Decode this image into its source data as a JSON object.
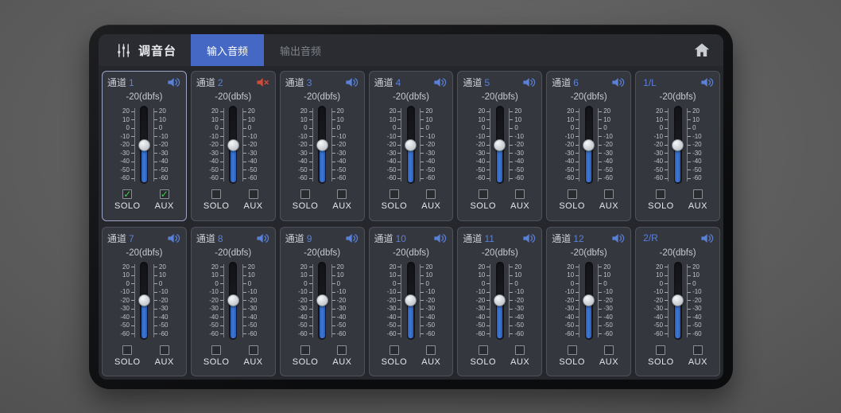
{
  "app": {
    "title": "调音台",
    "title_icon": "mixer-sliders-icon",
    "home_icon": "home-icon",
    "tabs": [
      {
        "label": "输入音频",
        "active": true
      },
      {
        "label": "输出音频",
        "active": false
      }
    ]
  },
  "colors": {
    "tab_active_blue": "#4468c4",
    "channel_accent_blue": "#5a80d8",
    "mute_red": "#d14b38",
    "check_green": "#3ecf52",
    "fader_blue": "#3471d0"
  },
  "fader_scale_labels": [
    "20",
    "10",
    "0",
    "-10",
    "-20",
    "-30",
    "-40",
    "-50",
    "-60"
  ],
  "checkbox_labels": {
    "solo": "SOLO",
    "aux": "AUX"
  },
  "channels": [
    {
      "prefix": "通道",
      "id": "1",
      "level": "-20(dbfs)",
      "fader_percent": 50,
      "muted": false,
      "selected": true,
      "solo": true,
      "aux": true
    },
    {
      "prefix": "通道",
      "id": "2",
      "level": "-20(dbfs)",
      "fader_percent": 50,
      "muted": true,
      "selected": false,
      "solo": false,
      "aux": false
    },
    {
      "prefix": "通道",
      "id": "3",
      "level": "-20(dbfs)",
      "fader_percent": 50,
      "muted": false,
      "selected": false,
      "solo": false,
      "aux": false
    },
    {
      "prefix": "通道",
      "id": "4",
      "level": "-20(dbfs)",
      "fader_percent": 50,
      "muted": false,
      "selected": false,
      "solo": false,
      "aux": false
    },
    {
      "prefix": "通道",
      "id": "5",
      "level": "-20(dbfs)",
      "fader_percent": 50,
      "muted": false,
      "selected": false,
      "solo": false,
      "aux": false
    },
    {
      "prefix": "通道",
      "id": "6",
      "level": "-20(dbfs)",
      "fader_percent": 50,
      "muted": false,
      "selected": false,
      "solo": false,
      "aux": false
    },
    {
      "prefix": "",
      "id": "1/L",
      "level": "-20(dbfs)",
      "fader_percent": 50,
      "muted": false,
      "selected": false,
      "solo": false,
      "aux": false
    },
    {
      "prefix": "通道",
      "id": "7",
      "level": "-20(dbfs)",
      "fader_percent": 50,
      "muted": false,
      "selected": false,
      "solo": false,
      "aux": false
    },
    {
      "prefix": "通道",
      "id": "8",
      "level": "-20(dbfs)",
      "fader_percent": 50,
      "muted": false,
      "selected": false,
      "solo": false,
      "aux": false
    },
    {
      "prefix": "通道",
      "id": "9",
      "level": "-20(dbfs)",
      "fader_percent": 50,
      "muted": false,
      "selected": false,
      "solo": false,
      "aux": false
    },
    {
      "prefix": "通道",
      "id": "10",
      "level": "-20(dbfs)",
      "fader_percent": 50,
      "muted": false,
      "selected": false,
      "solo": false,
      "aux": false
    },
    {
      "prefix": "通道",
      "id": "11",
      "level": "-20(dbfs)",
      "fader_percent": 50,
      "muted": false,
      "selected": false,
      "solo": false,
      "aux": false
    },
    {
      "prefix": "通道",
      "id": "12",
      "level": "-20(dbfs)",
      "fader_percent": 50,
      "muted": false,
      "selected": false,
      "solo": false,
      "aux": false
    },
    {
      "prefix": "",
      "id": "2/R",
      "level": "-20(dbfs)",
      "fader_percent": 50,
      "muted": false,
      "selected": false,
      "solo": false,
      "aux": false
    }
  ]
}
